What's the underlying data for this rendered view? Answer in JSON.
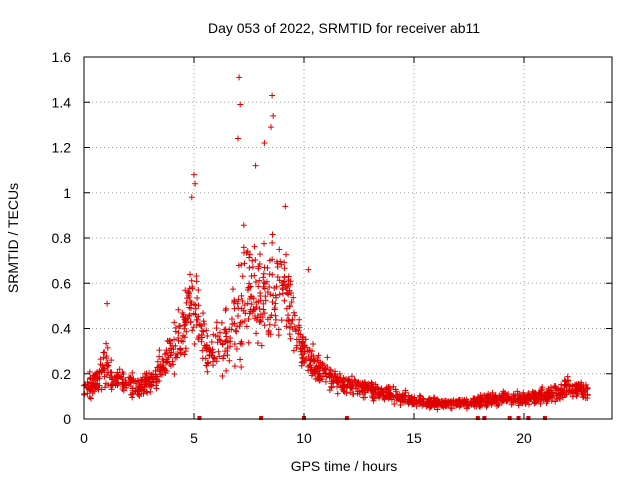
{
  "chart_data": {
    "type": "scatter",
    "title": "Day 053 of 2022, SRMTID for receiver ab11",
    "xlabel": "GPS time / hours",
    "ylabel": "SRMTID / TECUs",
    "xlim": [
      0,
      24
    ],
    "ylim": [
      0,
      1.6
    ],
    "xticks": [
      0,
      5,
      10,
      15,
      20
    ],
    "yticks": [
      0,
      0.2,
      0.4,
      0.6,
      0.8,
      1,
      1.2,
      1.4,
      1.6
    ],
    "xtick_labels": [
      "0",
      "5",
      "10",
      "15",
      "20"
    ],
    "ytick_labels": [
      "0",
      "0.2",
      "0.4",
      "0.6",
      "0.8",
      "1",
      "1.2",
      "1.4",
      "1.6"
    ],
    "grid": true,
    "marker": "+",
    "color": "#e00000",
    "envelope": {
      "description_hours": [
        0,
        0.5,
        1.0,
        1.5,
        2.0,
        2.5,
        3.0,
        3.5,
        4.0,
        4.5,
        5.0,
        5.3,
        5.6,
        6.0,
        6.5,
        7.0,
        7.3,
        7.6,
        8.0,
        8.5,
        9.0,
        9.3,
        9.6,
        10.0,
        10.5,
        11.0,
        11.5,
        12.0,
        13.0,
        14.0,
        15.0,
        16.0,
        17.0,
        18.0,
        19.0,
        20.0,
        21.0,
        22.0,
        22.9
      ],
      "center": [
        0.12,
        0.17,
        0.22,
        0.18,
        0.15,
        0.14,
        0.16,
        0.22,
        0.32,
        0.38,
        0.55,
        0.4,
        0.28,
        0.32,
        0.36,
        0.45,
        0.6,
        0.55,
        0.5,
        0.58,
        0.62,
        0.5,
        0.4,
        0.3,
        0.24,
        0.2,
        0.17,
        0.15,
        0.13,
        0.11,
        0.08,
        0.07,
        0.07,
        0.08,
        0.09,
        0.09,
        0.1,
        0.14,
        0.12
      ],
      "spread": [
        0.06,
        0.08,
        0.14,
        0.08,
        0.07,
        0.07,
        0.08,
        0.1,
        0.16,
        0.2,
        0.3,
        0.22,
        0.12,
        0.16,
        0.2,
        0.32,
        0.45,
        0.35,
        0.3,
        0.4,
        0.3,
        0.22,
        0.16,
        0.12,
        0.1,
        0.08,
        0.07,
        0.06,
        0.05,
        0.05,
        0.04,
        0.03,
        0.03,
        0.04,
        0.04,
        0.04,
        0.05,
        0.06,
        0.05
      ]
    },
    "peaks": [
      {
        "x": 5.0,
        "y": 1.08
      },
      {
        "x": 5.05,
        "y": 1.04
      },
      {
        "x": 4.9,
        "y": 0.98
      },
      {
        "x": 7.05,
        "y": 1.51
      },
      {
        "x": 7.1,
        "y": 1.39
      },
      {
        "x": 7.0,
        "y": 1.24
      },
      {
        "x": 8.55,
        "y": 1.43
      },
      {
        "x": 8.6,
        "y": 1.34
      },
      {
        "x": 8.5,
        "y": 1.29
      },
      {
        "x": 8.2,
        "y": 1.22
      },
      {
        "x": 7.8,
        "y": 1.12
      },
      {
        "x": 9.15,
        "y": 0.94
      },
      {
        "x": 10.2,
        "y": 0.66
      },
      {
        "x": 1.05,
        "y": 0.51
      }
    ],
    "zero_markers_hours": [
      5.25,
      8.05,
      10.0,
      11.95,
      17.9,
      18.2,
      19.35,
      19.75,
      20.2,
      20.95
    ]
  }
}
